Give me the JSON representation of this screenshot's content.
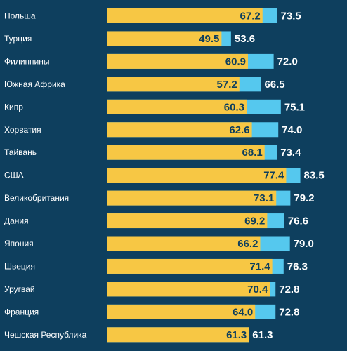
{
  "chart_data": {
    "type": "bar",
    "orientation": "horizontal",
    "stacked_overlay": true,
    "categories": [
      "Польша",
      "Турция",
      "Филиппины",
      "Южная Африка",
      "Кипр",
      "Хорватия",
      "Тайвань",
      "США",
      "Великобритания",
      "Дания",
      "Япония",
      "Швеция",
      "Уругвай",
      "Франция",
      "Чешская Республика"
    ],
    "series": [
      {
        "values": [
          67.2,
          49.5,
          60.9,
          57.2,
          60.3,
          62.6,
          68.1,
          77.4,
          73.1,
          69.2,
          66.2,
          71.4,
          70.4,
          64.0,
          61.3
        ]
      },
      {
        "values": [
          73.5,
          53.6,
          72.0,
          66.5,
          75.1,
          74.0,
          73.4,
          83.5,
          79.2,
          76.6,
          79.0,
          76.3,
          72.8,
          72.8,
          61.3
        ]
      }
    ],
    "value_labels": {
      "inner": [
        "67.2",
        "49.5",
        "60.9",
        "57.2",
        "60.3",
        "62.6",
        "68.1",
        "77.4",
        "73.1",
        "69.2",
        "66.2",
        "71.4",
        "70.4",
        "64.0",
        "61.3"
      ],
      "outer": [
        "73.5",
        "53.6",
        "72.0",
        "66.5",
        "75.1",
        "74.0",
        "73.4",
        "83.5",
        "79.2",
        "76.6",
        "79.0",
        "76.3",
        "72.8",
        "72.8",
        "61.3"
      ]
    },
    "xlim": [
      0,
      90
    ],
    "grid": false,
    "legend": "none",
    "colors": {
      "background": "#0e3f5e",
      "series_1": "#f7c744",
      "series_2": "#55c8ee",
      "inner_label": "#0e3f5e",
      "outer_label": "#ffffff",
      "country_label": "#ffffff"
    }
  }
}
